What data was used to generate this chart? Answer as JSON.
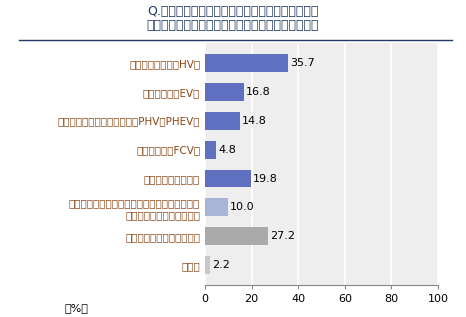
{
  "title_line1": "Q.今後自動車を購入する場合、ガソリン車以外の",
  "title_line2": "電気自動車やハイブリッド車などを検討しますか？",
  "categories": [
    "ハイブリッド車（HV）",
    "電気自動車（EV）",
    "プラグインハイブリッド車（PHV、PHEV）",
    "燃料電池車（FCV）",
    "その他・わからない",
    "電気自動車・ハイブリッド車などは検討しない\n（ガソリン車を検討する）",
    "自動車の購入は検討しない",
    "無回答"
  ],
  "values": [
    35.7,
    16.8,
    14.8,
    4.8,
    19.8,
    10.0,
    27.2,
    2.2
  ],
  "bar_colors": [
    "#6070C0",
    "#6070C0",
    "#6070C0",
    "#6070C0",
    "#6070C0",
    "#A8B4D8",
    "#AAAAAA",
    "#C8C8C8"
  ],
  "xlim": [
    0,
    100
  ],
  "xticks": [
    0,
    20,
    40,
    60,
    80,
    100
  ],
  "xlabel": "（%）",
  "bg_color": "#FFFFFF",
  "plot_bg_color": "#EEEEEE",
  "title_color": "#1F3864",
  "label_color": "#8B4513",
  "value_color": "#000000",
  "grid_color": "#FFFFFF",
  "title_fontsize": 9.0,
  "label_fontsize": 7.5,
  "value_fontsize": 8.0,
  "tick_fontsize": 8.0
}
